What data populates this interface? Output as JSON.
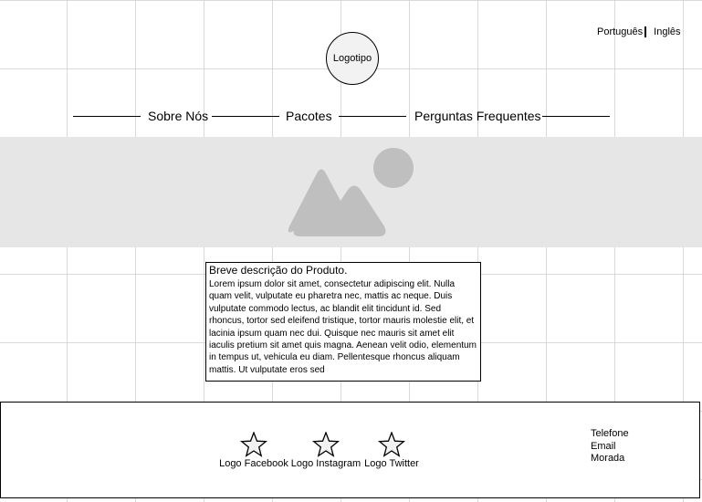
{
  "header": {
    "languages": [
      "Português",
      "Inglês"
    ],
    "logo_label": "Logotipo"
  },
  "nav": {
    "items": [
      "Sobre Nós",
      "Pacotes",
      "Perguntas Frequentes"
    ]
  },
  "banner": {
    "icon": "image-placeholder-icon"
  },
  "description": {
    "title": "Breve descrição do Produto.",
    "body": "Lorem ipsum dolor sit amet, consectetur adipiscing elit. Nulla quam velit, vulputate eu pharetra nec, mattis ac neque. Duis vulputate commodo lectus, ac blandit elit tincidunt id. Sed rhoncus, tortor sed eleifend tristique, tortor mauris molestie elit, et lacinia ipsum quam nec dui. Quisque nec mauris sit amet elit iaculis pretium sit amet quis magna. Aenean velit odio, elementum in tempus ut, vehicula eu diam. Pellentesque rhoncus aliquam mattis. Ut vulputate eros sed"
  },
  "footer": {
    "social": [
      {
        "label": "Logo Facebook",
        "icon": "star-icon"
      },
      {
        "label": "Logo Instagram",
        "icon": "star-icon"
      },
      {
        "label": "Logo Twitter",
        "icon": "star-icon"
      }
    ],
    "contact": [
      "Telefone",
      "Email",
      "Morada"
    ]
  },
  "colors": {
    "banner_bg": "#e6e6e6",
    "placeholder_shape": "#bfbfbf",
    "grid_line": "#d9d9d9"
  }
}
